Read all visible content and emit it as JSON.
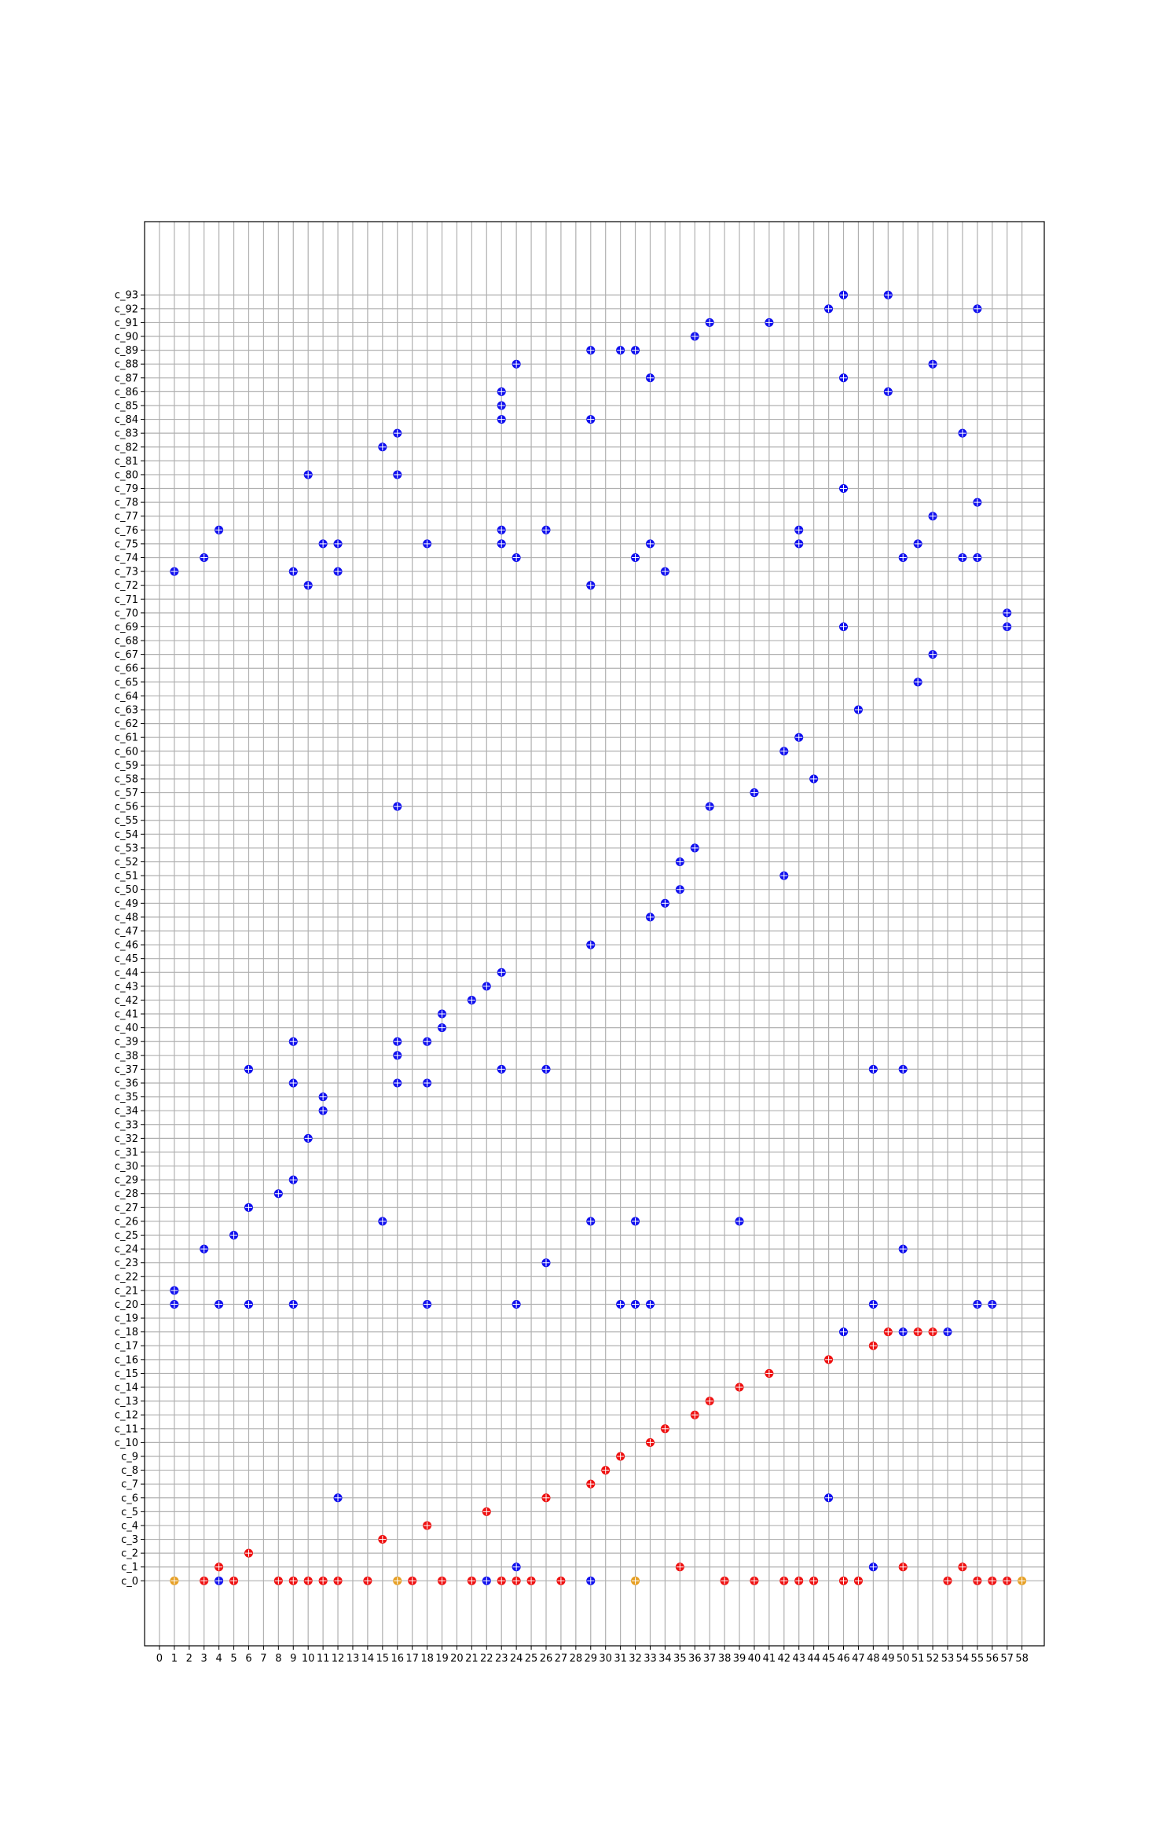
{
  "chart_data": {
    "type": "scatter",
    "title": "",
    "xlabel": "",
    "ylabel": "",
    "grid": true,
    "x_ticks": [
      0,
      1,
      2,
      3,
      4,
      5,
      6,
      7,
      8,
      9,
      10,
      11,
      12,
      13,
      14,
      15,
      16,
      17,
      18,
      19,
      20,
      21,
      22,
      23,
      24,
      25,
      26,
      27,
      28,
      29,
      30,
      31,
      32,
      33,
      34,
      35,
      36,
      37,
      38,
      39,
      40,
      41,
      42,
      43,
      44,
      45,
      46,
      47,
      48,
      49,
      50,
      51,
      52,
      53,
      54,
      55,
      56,
      57,
      58
    ],
    "y_categories": [
      "c_0",
      "c_1",
      "c_2",
      "c_3",
      "c_4",
      "c_5",
      "c_6",
      "c_7",
      "c_8",
      "c_9",
      "c_10",
      "c_11",
      "c_12",
      "c_13",
      "c_14",
      "c_15",
      "c_16",
      "c_17",
      "c_18",
      "c_19",
      "c_20",
      "c_21",
      "c_22",
      "c_23",
      "c_24",
      "c_25",
      "c_26",
      "c_27",
      "c_28",
      "c_29",
      "c_30",
      "c_31",
      "c_32",
      "c_33",
      "c_34",
      "c_35",
      "c_36",
      "c_37",
      "c_38",
      "c_39",
      "c_40",
      "c_41",
      "c_42",
      "c_43",
      "c_44",
      "c_45",
      "c_46",
      "c_47",
      "c_48",
      "c_49",
      "c_50",
      "c_51",
      "c_52",
      "c_53",
      "c_54",
      "c_55",
      "c_56",
      "c_57",
      "c_58",
      "c_59",
      "c_60",
      "c_61",
      "c_62",
      "c_63",
      "c_64",
      "c_65",
      "c_66",
      "c_67",
      "c_68",
      "c_69",
      "c_70",
      "c_71",
      "c_72",
      "c_73",
      "c_74",
      "c_75",
      "c_76",
      "c_77",
      "c_78",
      "c_79",
      "c_80",
      "c_81",
      "c_82",
      "c_83",
      "c_84",
      "c_85",
      "c_86",
      "c_87",
      "c_88",
      "c_89",
      "c_90",
      "c_91",
      "c_92",
      "c_93"
    ],
    "xlim": [
      -1,
      59.5
    ],
    "ylim": [
      -4.7,
      98.3
    ],
    "series": [
      {
        "color": "#e69f24",
        "points": [
          [
            1,
            0
          ],
          [
            16,
            0
          ],
          [
            32,
            0
          ],
          [
            58,
            0
          ]
        ]
      },
      {
        "color": "#ee1111",
        "points": [
          [
            3,
            0
          ],
          [
            5,
            0
          ],
          [
            8,
            0
          ],
          [
            9,
            0
          ],
          [
            10,
            0
          ],
          [
            11,
            0
          ],
          [
            12,
            0
          ],
          [
            14,
            0
          ],
          [
            17,
            0
          ],
          [
            19,
            0
          ],
          [
            21,
            0
          ],
          [
            23,
            0
          ],
          [
            24,
            0
          ],
          [
            25,
            0
          ],
          [
            27,
            0
          ],
          [
            38,
            0
          ],
          [
            40,
            0
          ],
          [
            42,
            0
          ],
          [
            43,
            0
          ],
          [
            44,
            0
          ],
          [
            46,
            0
          ],
          [
            47,
            0
          ],
          [
            53,
            0
          ],
          [
            55,
            0
          ],
          [
            56,
            0
          ],
          [
            57,
            0
          ],
          [
            4,
            1
          ],
          [
            35,
            1
          ],
          [
            50,
            1
          ],
          [
            54,
            1
          ],
          [
            6,
            2
          ],
          [
            15,
            3
          ],
          [
            18,
            4
          ],
          [
            22,
            5
          ],
          [
            26,
            6
          ],
          [
            29,
            7
          ],
          [
            30,
            8
          ],
          [
            31,
            9
          ],
          [
            33,
            10
          ],
          [
            34,
            11
          ],
          [
            36,
            12
          ],
          [
            37,
            13
          ],
          [
            39,
            14
          ],
          [
            41,
            15
          ],
          [
            45,
            16
          ],
          [
            48,
            17
          ],
          [
            49,
            18
          ],
          [
            51,
            18
          ],
          [
            52,
            18
          ]
        ]
      },
      {
        "color": "#1111ee",
        "points": [
          [
            4,
            0
          ],
          [
            22,
            0
          ],
          [
            29,
            0
          ],
          [
            24,
            1
          ],
          [
            48,
            1
          ],
          [
            12,
            6
          ],
          [
            45,
            6
          ],
          [
            46,
            18
          ],
          [
            50,
            18
          ],
          [
            53,
            18
          ],
          [
            1,
            20
          ],
          [
            4,
            20
          ],
          [
            6,
            20
          ],
          [
            9,
            20
          ],
          [
            18,
            20
          ],
          [
            24,
            20
          ],
          [
            31,
            20
          ],
          [
            32,
            20
          ],
          [
            33,
            20
          ],
          [
            48,
            20
          ],
          [
            55,
            20
          ],
          [
            56,
            20
          ],
          [
            1,
            21
          ],
          [
            26,
            23
          ],
          [
            3,
            24
          ],
          [
            50,
            24
          ],
          [
            5,
            25
          ],
          [
            15,
            26
          ],
          [
            29,
            26
          ],
          [
            32,
            26
          ],
          [
            39,
            26
          ],
          [
            6,
            27
          ],
          [
            8,
            28
          ],
          [
            9,
            29
          ],
          [
            10,
            32
          ],
          [
            11,
            34
          ],
          [
            11,
            35
          ],
          [
            9,
            36
          ],
          [
            16,
            36
          ],
          [
            18,
            36
          ],
          [
            6,
            37
          ],
          [
            23,
            37
          ],
          [
            26,
            37
          ],
          [
            48,
            37
          ],
          [
            50,
            37
          ],
          [
            16,
            38
          ],
          [
            9,
            39
          ],
          [
            16,
            39
          ],
          [
            18,
            39
          ],
          [
            19,
            40
          ],
          [
            19,
            41
          ],
          [
            21,
            42
          ],
          [
            22,
            43
          ],
          [
            23,
            44
          ],
          [
            29,
            46
          ],
          [
            33,
            48
          ],
          [
            34,
            49
          ],
          [
            35,
            50
          ],
          [
            42,
            51
          ],
          [
            35,
            52
          ],
          [
            36,
            53
          ],
          [
            16,
            56
          ],
          [
            37,
            56
          ],
          [
            40,
            57
          ],
          [
            44,
            58
          ],
          [
            42,
            60
          ],
          [
            43,
            61
          ],
          [
            47,
            63
          ],
          [
            51,
            65
          ],
          [
            52,
            67
          ],
          [
            46,
            69
          ],
          [
            57,
            69
          ],
          [
            57,
            70
          ],
          [
            10,
            72
          ],
          [
            29,
            72
          ],
          [
            1,
            73
          ],
          [
            9,
            73
          ],
          [
            12,
            73
          ],
          [
            34,
            73
          ],
          [
            3,
            74
          ],
          [
            24,
            74
          ],
          [
            32,
            74
          ],
          [
            50,
            74
          ],
          [
            54,
            74
          ],
          [
            55,
            74
          ],
          [
            11,
            75
          ],
          [
            12,
            75
          ],
          [
            18,
            75
          ],
          [
            23,
            75
          ],
          [
            33,
            75
          ],
          [
            43,
            75
          ],
          [
            51,
            75
          ],
          [
            4,
            76
          ],
          [
            23,
            76
          ],
          [
            26,
            76
          ],
          [
            43,
            76
          ],
          [
            52,
            77
          ],
          [
            55,
            78
          ],
          [
            46,
            79
          ],
          [
            10,
            80
          ],
          [
            16,
            80
          ],
          [
            15,
            82
          ],
          [
            16,
            83
          ],
          [
            54,
            83
          ],
          [
            23,
            84
          ],
          [
            29,
            84
          ],
          [
            23,
            85
          ],
          [
            23,
            86
          ],
          [
            49,
            86
          ],
          [
            33,
            87
          ],
          [
            46,
            87
          ],
          [
            24,
            88
          ],
          [
            52,
            88
          ],
          [
            29,
            89
          ],
          [
            31,
            89
          ],
          [
            32,
            89
          ],
          [
            36,
            90
          ],
          [
            37,
            91
          ],
          [
            41,
            91
          ],
          [
            45,
            92
          ],
          [
            55,
            92
          ],
          [
            46,
            93
          ],
          [
            49,
            93
          ]
        ]
      }
    ]
  }
}
